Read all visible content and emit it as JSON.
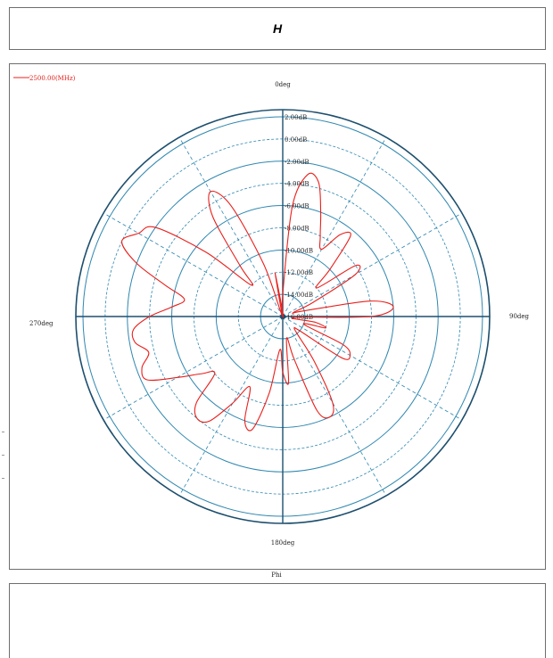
{
  "title": "H",
  "chart_data": {
    "type": "line",
    "projection": "polar",
    "angle_unit": "deg",
    "angle_direction": "clockwise",
    "zero_location": "top",
    "angle_labels": [
      {
        "angle": 0,
        "text": "0deg"
      },
      {
        "angle": 90,
        "text": "90deg"
      },
      {
        "angle": 180,
        "text": "180deg"
      },
      {
        "angle": 270,
        "text": "270deg"
      }
    ],
    "radial_axis": {
      "unit": "dB",
      "max_at_center": -16,
      "value_at_edge": 2,
      "tick_labels": [
        "2.00dB",
        "0.00dB",
        "-2.00dB",
        "-4.00dB",
        "-6.00dB",
        "-8.00dB",
        "-10.00dB",
        "-12.00dB",
        "-14.00dB",
        "-16.00dB"
      ],
      "tick_values": [
        2,
        0,
        -2,
        -4,
        -6,
        -8,
        -10,
        -12,
        -14,
        -16
      ]
    },
    "xlabel": "Phi",
    "legend_position": "top-left",
    "colors": {
      "series": "#e8201c",
      "grid": "#2f87b0",
      "outer": "#1d4f6e"
    },
    "series": [
      {
        "name": "2500.00(MHz)",
        "theta": [
          0,
          5,
          10,
          15,
          20,
          25,
          30,
          35,
          40,
          45,
          50,
          55,
          60,
          65,
          70,
          75,
          80,
          85,
          90,
          95,
          100,
          105,
          110,
          115,
          120,
          125,
          130,
          135,
          140,
          145,
          150,
          155,
          160,
          165,
          170,
          175,
          180,
          185,
          190,
          195,
          200,
          205,
          210,
          215,
          220,
          225,
          230,
          235,
          240,
          245,
          250,
          255,
          260,
          265,
          270,
          275,
          280,
          285,
          290,
          295,
          300,
          305,
          310,
          315,
          320,
          325,
          330,
          335,
          340,
          345,
          350,
          355
        ],
        "r_db": [
          -14,
          -6,
          -3,
          -3.5,
          -6,
          -8,
          -9,
          -7,
          -6.5,
          -10,
          -12,
          -8,
          -8.5,
          -13,
          -15,
          -14,
          -8,
          -6,
          -8,
          -15,
          -13,
          -12,
          -14,
          -10,
          -9,
          -9.5,
          -14,
          -14.5,
          -14,
          -11,
          -7,
          -6,
          -7,
          -12,
          -14,
          -10,
          -11,
          -13,
          -9,
          -5.5,
          -6,
          -9,
          -7,
          -4.5,
          -4,
          -5,
          -8,
          -7,
          -5,
          -2.5,
          -2.5,
          -3.5,
          -2.5,
          -2.5,
          -4,
          -6,
          -7,
          -5,
          -2,
          0,
          -1,
          -2,
          -7,
          -12,
          -10,
          -5,
          -3,
          -5,
          -11,
          -16,
          -12,
          -16
        ]
      }
    ]
  }
}
